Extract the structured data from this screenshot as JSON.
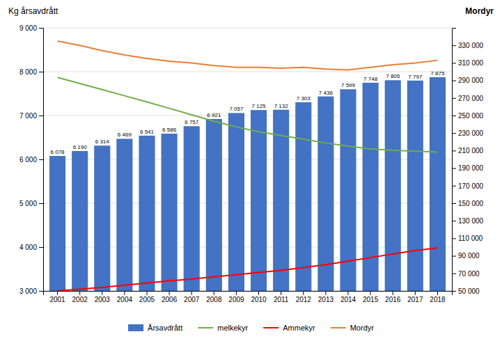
{
  "chart_data": {
    "type": "bar",
    "ylabel": "Kg årsavdrått",
    "y2label": "Mordyr",
    "categories": [
      "2001",
      "2002",
      "2003",
      "2004",
      "2005",
      "2006",
      "2007",
      "2008",
      "2009",
      "2010",
      "2011",
      "2012",
      "2013",
      "2014",
      "2015",
      "2016",
      "2017",
      "2018"
    ],
    "series": [
      {
        "name": "Årsavdrått",
        "type": "bar",
        "color": "#4472C4",
        "values": [
          6078,
          6190,
          6314,
          6469,
          6541,
          6586,
          6757,
          6921,
          7057,
          7125,
          7132,
          7303,
          7436,
          7599,
          7748,
          7805,
          7797,
          7875
        ],
        "value_labels": [
          "6 078",
          "6 190",
          "6 314",
          "6 469",
          "6 541",
          "6 586",
          "6 757",
          "6 921",
          "7 057",
          "7 125",
          "7 132",
          "7 303",
          "7 436",
          "7 599",
          "7 748",
          "7 805",
          "7 797",
          "7 875"
        ]
      },
      {
        "name": "melkekyr",
        "type": "line",
        "color": "#70AD47",
        "values": [
          7870,
          7730,
          7590,
          7450,
          7310,
          7165,
          7015,
          6870,
          6740,
          6630,
          6545,
          6460,
          6375,
          6300,
          6240,
          6205,
          6185,
          6165
        ]
      },
      {
        "name": "Ammekyr",
        "type": "line",
        "color": "#FF0000",
        "axis": "y2",
        "values": [
          50000,
          52000,
          54000,
          56500,
          59000,
          61500,
          63500,
          66000,
          68500,
          71000,
          73500,
          76500,
          80000,
          84000,
          88000,
          92000,
          96000,
          99000
        ]
      },
      {
        "name": "Mordyr",
        "type": "line",
        "color": "#ED7D31",
        "axis": "y2",
        "values": [
          335000,
          330000,
          324000,
          319000,
          315000,
          312000,
          310000,
          307000,
          305000,
          305000,
          304000,
          305000,
          303000,
          302000,
          305000,
          308000,
          310000,
          313000
        ]
      }
    ],
    "ylim": [
      3000,
      9000
    ],
    "yticks": [
      {
        "value": 3000,
        "label": "3 000"
      },
      {
        "value": 4000,
        "label": "4 000"
      },
      {
        "value": 5000,
        "label": "5 000"
      },
      {
        "value": 6000,
        "label": "6 000"
      },
      {
        "value": 7000,
        "label": "7 000"
      },
      {
        "value": 8000,
        "label": "8 000"
      },
      {
        "value": 9000,
        "label": "9 000"
      }
    ],
    "y2lim": [
      50000,
      350000
    ],
    "y2ticks": [
      {
        "value": 50000,
        "label": "50 000"
      },
      {
        "value": 70000,
        "label": "70 000"
      },
      {
        "value": 90000,
        "label": "90 000"
      },
      {
        "value": 110000,
        "label": "110 000"
      },
      {
        "value": 130000,
        "label": "130 000"
      },
      {
        "value": 150000,
        "label": "150 000"
      },
      {
        "value": 170000,
        "label": "170 000"
      },
      {
        "value": 190000,
        "label": "190 000"
      },
      {
        "value": 210000,
        "label": "210 000"
      },
      {
        "value": 230000,
        "label": "230 000"
      },
      {
        "value": 250000,
        "label": "250 000"
      },
      {
        "value": 270000,
        "label": "270 000"
      },
      {
        "value": 290000,
        "label": "290 000"
      },
      {
        "value": 310000,
        "label": "310 000"
      },
      {
        "value": 330000,
        "label": "330 000"
      }
    ],
    "grid": true,
    "legend": "bottom",
    "data_labels": true
  }
}
